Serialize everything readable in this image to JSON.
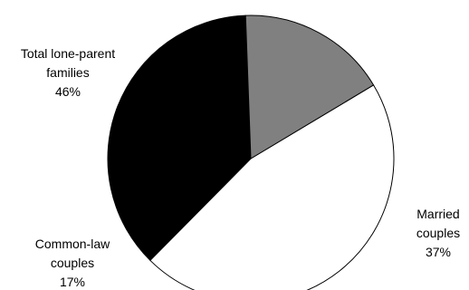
{
  "chart_data": {
    "type": "pie",
    "title": "",
    "slices": [
      {
        "label_lines": [
          "Total lone-parent",
          "families",
          "46%"
        ],
        "value": 46,
        "color": "#ffffff"
      },
      {
        "label_lines": [
          "Married",
          "couples",
          "37%"
        ],
        "value": 37,
        "color": "#000000"
      },
      {
        "label_lines": [
          "Common-law",
          "couples",
          "17%"
        ],
        "value": 17,
        "color": "#808080"
      }
    ],
    "legend": "none",
    "slice_border_color": "#000000"
  }
}
